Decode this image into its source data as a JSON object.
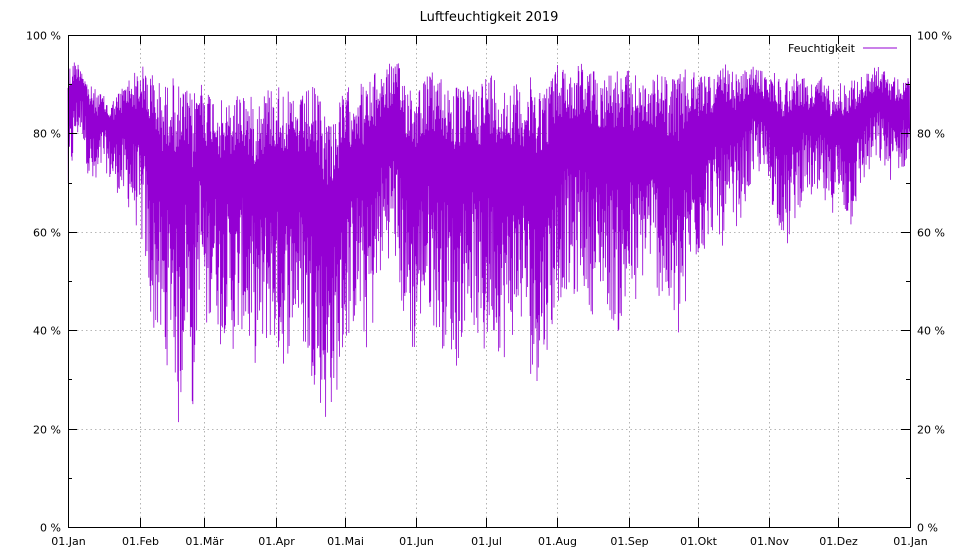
{
  "chart_data": {
    "type": "line",
    "title": "Luftfeuchtigkeit 2019",
    "xlabel": "",
    "ylabel": "",
    "ylim": [
      0,
      100
    ],
    "xlim": [
      "2019-01-01",
      "2020-01-01"
    ],
    "y_ticks": [
      0,
      20,
      40,
      60,
      80,
      100
    ],
    "y_tick_labels": [
      "0 %",
      "20 %",
      "40 %",
      "60 %",
      "80 %",
      "100 %"
    ],
    "x_tick_labels": [
      "01.Jan",
      "01.Feb",
      "01.Mär",
      "01.Apr",
      "01.Mai",
      "01.Jun",
      "01.Jul",
      "01.Aug",
      "01.Sep",
      "01.Okt",
      "01.Nov",
      "01.Dez",
      "01.Jan"
    ],
    "x_tick_dates": [
      "2019-01-01",
      "2019-02-01",
      "2019-03-01",
      "2019-04-01",
      "2019-05-01",
      "2019-06-01",
      "2019-07-01",
      "2019-08-01",
      "2019-09-01",
      "2019-10-01",
      "2019-11-01",
      "2019-12-01",
      "2020-01-01"
    ],
    "grid": true,
    "legend_position": "top-right",
    "color": "#9400d3",
    "series": [
      {
        "name": "Feuchtigkeit",
        "x": [
          "2019-01-01",
          "2019-01-04",
          "2019-01-07",
          "2019-01-10",
          "2019-01-13",
          "2019-01-16",
          "2019-01-19",
          "2019-01-22",
          "2019-01-25",
          "2019-01-28",
          "2019-01-31",
          "2019-02-03",
          "2019-02-06",
          "2019-02-09",
          "2019-02-12",
          "2019-02-15",
          "2019-02-18",
          "2019-02-21",
          "2019-02-24",
          "2019-02-27",
          "2019-03-02",
          "2019-03-05",
          "2019-03-08",
          "2019-03-11",
          "2019-03-14",
          "2019-03-17",
          "2019-03-20",
          "2019-03-23",
          "2019-03-26",
          "2019-03-29",
          "2019-04-01",
          "2019-04-04",
          "2019-04-07",
          "2019-04-10",
          "2019-04-13",
          "2019-04-16",
          "2019-04-19",
          "2019-04-22",
          "2019-04-25",
          "2019-04-28",
          "2019-05-01",
          "2019-05-04",
          "2019-05-07",
          "2019-05-10",
          "2019-05-13",
          "2019-05-16",
          "2019-05-19",
          "2019-05-22",
          "2019-05-25",
          "2019-05-28",
          "2019-05-31",
          "2019-06-03",
          "2019-06-06",
          "2019-06-09",
          "2019-06-12",
          "2019-06-15",
          "2019-06-18",
          "2019-06-21",
          "2019-06-24",
          "2019-06-27",
          "2019-06-30",
          "2019-07-03",
          "2019-07-06",
          "2019-07-09",
          "2019-07-12",
          "2019-07-15",
          "2019-07-18",
          "2019-07-21",
          "2019-07-24",
          "2019-07-27",
          "2019-07-30",
          "2019-08-02",
          "2019-08-05",
          "2019-08-08",
          "2019-08-11",
          "2019-08-14",
          "2019-08-17",
          "2019-08-20",
          "2019-08-23",
          "2019-08-26",
          "2019-08-29",
          "2019-09-01",
          "2019-09-04",
          "2019-09-07",
          "2019-09-10",
          "2019-09-13",
          "2019-09-16",
          "2019-09-19",
          "2019-09-22",
          "2019-09-25",
          "2019-09-28",
          "2019-10-01",
          "2019-10-04",
          "2019-10-07",
          "2019-10-10",
          "2019-10-13",
          "2019-10-16",
          "2019-10-19",
          "2019-10-22",
          "2019-10-25",
          "2019-10-28",
          "2019-10-31",
          "2019-11-03",
          "2019-11-06",
          "2019-11-09",
          "2019-11-12",
          "2019-11-15",
          "2019-11-18",
          "2019-11-21",
          "2019-11-24",
          "2019-11-27",
          "2019-11-30",
          "2019-12-03",
          "2019-12-06",
          "2019-12-09",
          "2019-12-12",
          "2019-12-15",
          "2019-12-18",
          "2019-12-21",
          "2019-12-24",
          "2019-12-27",
          "2019-12-30"
        ],
        "max": [
          94,
          95,
          94,
          90,
          89,
          88,
          86,
          88,
          90,
          92,
          93,
          94,
          93,
          91,
          90,
          92,
          90,
          89,
          88,
          92,
          90,
          88,
          87,
          86,
          88,
          90,
          88,
          87,
          89,
          90,
          90,
          91,
          88,
          86,
          88,
          90,
          89,
          86,
          84,
          86,
          89,
          90,
          91,
          90,
          92,
          93,
          94,
          95,
          94,
          92,
          90,
          91,
          92,
          93,
          92,
          91,
          90,
          89,
          90,
          91,
          92,
          93,
          92,
          90,
          91,
          90,
          89,
          92,
          91,
          90,
          93,
          95,
          94,
          93,
          95,
          94,
          93,
          92,
          93,
          94,
          92,
          93,
          92,
          91,
          90,
          92,
          93,
          91,
          92,
          93,
          93,
          92,
          93,
          92,
          93,
          94,
          93,
          92,
          93,
          94,
          93,
          92,
          93,
          91,
          92,
          93,
          92,
          90,
          91,
          92,
          90,
          91,
          90,
          92,
          91,
          92,
          93,
          94,
          93,
          92,
          91,
          92
        ],
        "min": [
          65,
          78,
          80,
          70,
          66,
          74,
          70,
          68,
          66,
          64,
          60,
          55,
          40,
          38,
          30,
          40,
          17,
          44,
          22,
          50,
          38,
          48,
          36,
          42,
          34,
          40,
          36,
          33,
          34,
          38,
          35,
          32,
          36,
          42,
          36,
          30,
          28,
          20,
          24,
          28,
          36,
          40,
          42,
          35,
          40,
          50,
          54,
          56,
          45,
          38,
          34,
          42,
          44,
          40,
          36,
          38,
          30,
          40,
          44,
          38,
          32,
          40,
          36,
          34,
          38,
          40,
          42,
          28,
          30,
          35,
          40,
          46,
          48,
          44,
          50,
          46,
          42,
          48,
          44,
          40,
          38,
          46,
          44,
          50,
          54,
          48,
          44,
          42,
          36,
          40,
          52,
          54,
          56,
          60,
          58,
          56,
          60,
          62,
          66,
          70,
          72,
          68,
          64,
          60,
          56,
          62,
          66,
          68,
          64,
          66,
          62,
          66,
          64,
          60,
          66,
          70,
          72,
          74,
          72,
          70,
          72,
          73
        ]
      }
    ]
  }
}
